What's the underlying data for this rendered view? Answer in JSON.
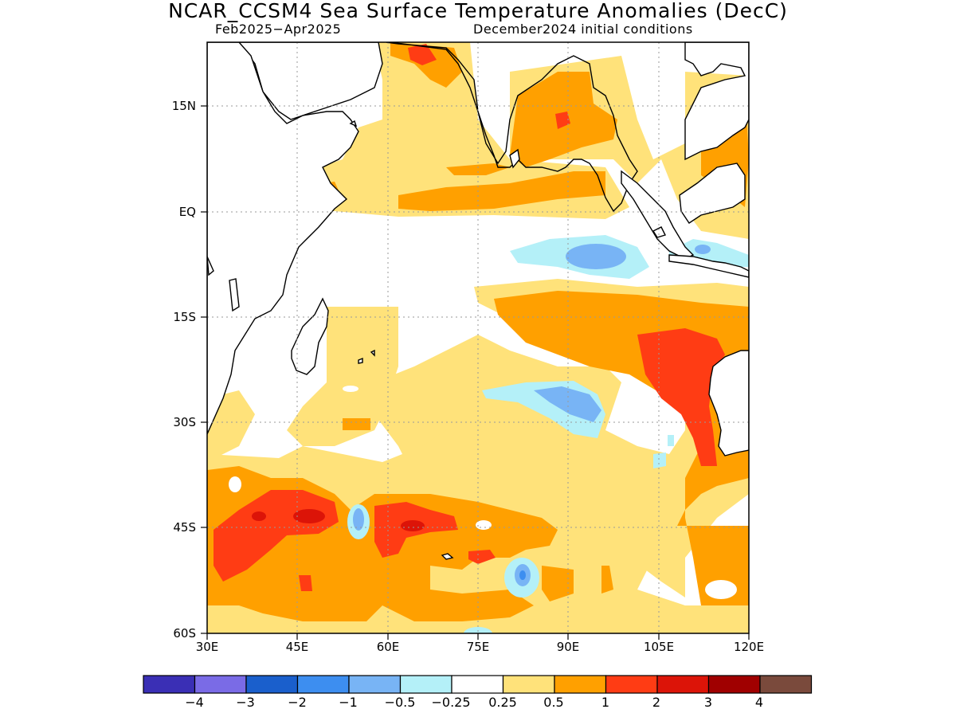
{
  "title": "NCAR_CCSM4 Sea Surface Temperature Anomalies (DecC)",
  "subtitle_left": "Feb2025−Apr2025",
  "subtitle_right": "December2024 initial conditions",
  "y_ticks": [
    "15N",
    "EQ",
    "15S",
    "30S",
    "45S",
    "60S"
  ],
  "x_ticks": [
    "30E",
    "45E",
    "60E",
    "75E",
    "90E",
    "105E",
    "120E"
  ],
  "colorbar": {
    "colors": [
      "#3a2fb5",
      "#7a6be6",
      "#1a5fcc",
      "#3d8ef0",
      "#78b4f5",
      "#b4f0f8",
      "#ffffff",
      "#ffe27a",
      "#ffa000",
      "#ff3c14",
      "#dc1408",
      "#a00000",
      "#7a4a3c"
    ],
    "labels": [
      "−4",
      "−3",
      "−2",
      "−1",
      "−0.5",
      "−0.25",
      "0.25",
      "0.5",
      "1",
      "2",
      "3",
      "4"
    ]
  },
  "chart_data": {
    "type": "heatmap",
    "title": "NCAR_CCSM4 Sea Surface Temperature Anomalies (DecC)",
    "subtitle": [
      "Feb2025−Apr2025",
      "December2024 initial conditions"
    ],
    "xlim": [
      30,
      120
    ],
    "ylim": [
      -60,
      25
    ],
    "grid": true,
    "x_ticks": [
      "30E",
      "45E",
      "60E",
      "75E",
      "90E",
      "105E",
      "120E"
    ],
    "y_ticks": [
      "15N",
      "EQ",
      "15S",
      "30S",
      "45S",
      "60S"
    ],
    "levels": [
      -4,
      -3,
      -2,
      -1,
      -0.5,
      -0.25,
      0.25,
      0.5,
      1,
      2,
      3,
      4
    ]
  }
}
